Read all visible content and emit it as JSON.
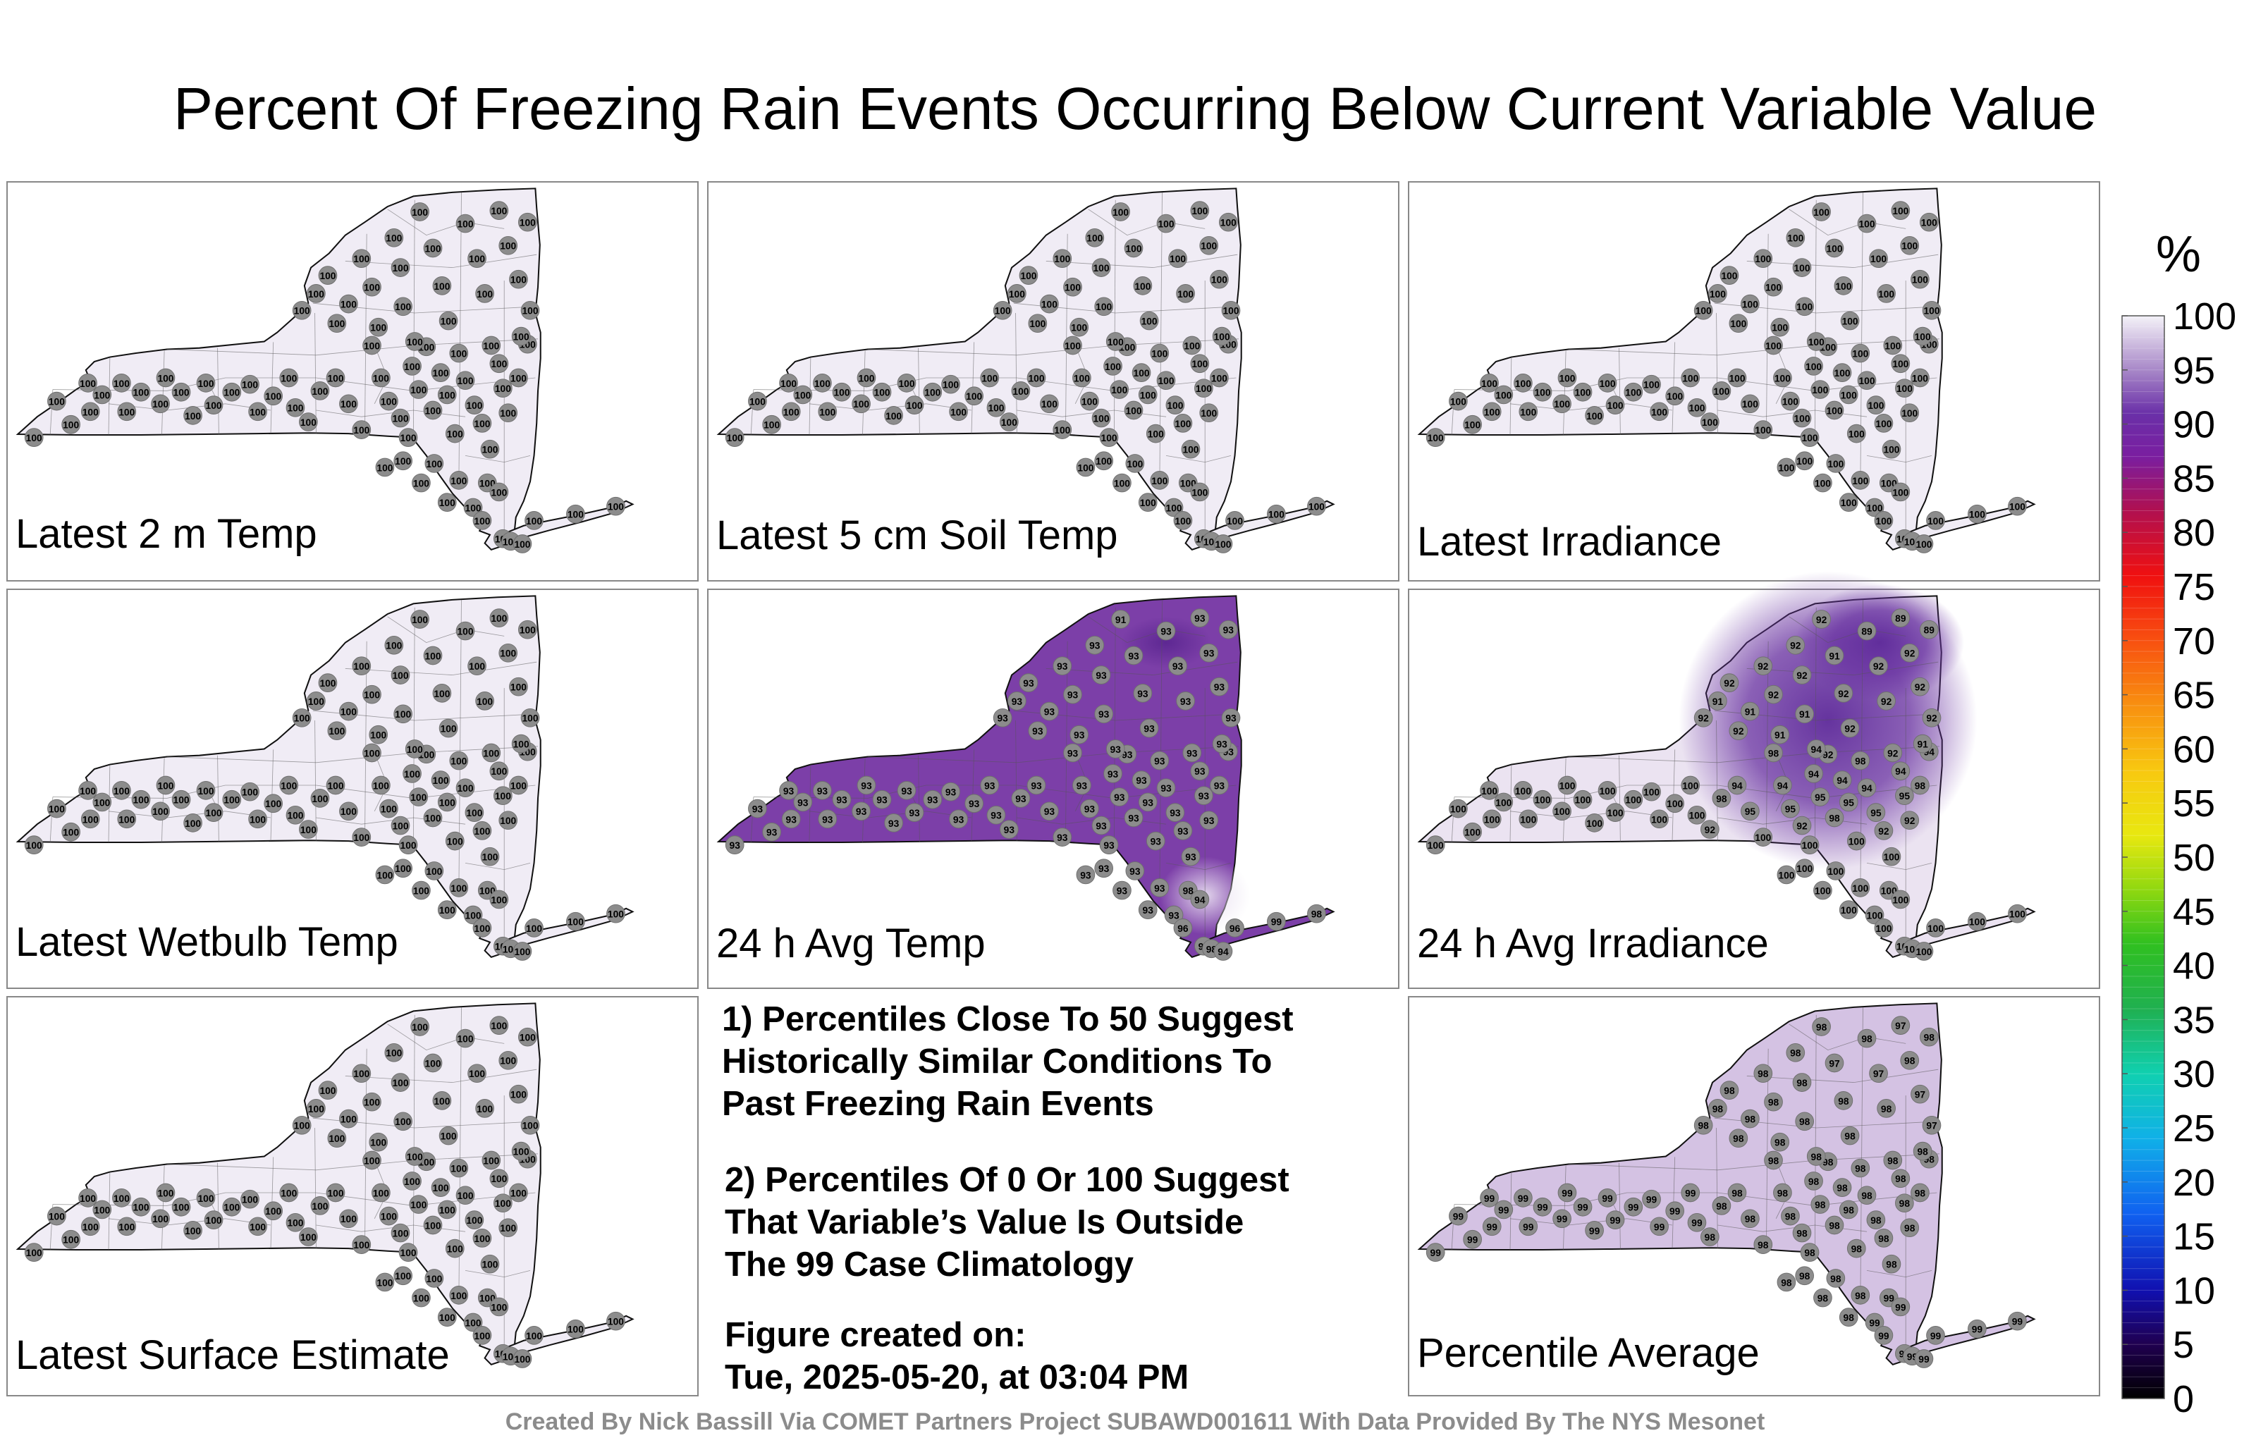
{
  "title": "Percent Of Freezing Rain Events Occurring Below Current Variable Value",
  "panels": [
    {
      "label": "Latest 2 m Temp",
      "fill": "#f0ecf5",
      "mode": "uniform",
      "value": "100"
    },
    {
      "label": "Latest 5 cm Soil Temp",
      "fill": "#f0ecf5",
      "mode": "uniform",
      "value": "100"
    },
    {
      "label": "Latest Irradiance",
      "fill": "#f0ecf5",
      "mode": "uniform",
      "value": "100"
    },
    {
      "label": "Latest Wetbulb Temp",
      "fill": "#f0ecf5",
      "mode": "uniform",
      "value": "100"
    },
    {
      "label": "24 h Avg Temp",
      "fill": "#7c3fa8",
      "mode": "avgtemp",
      "value": "93"
    },
    {
      "label": "24 h Avg Irradiance",
      "fill": "#ebe3f1",
      "mode": "avgirr",
      "value": "100"
    },
    {
      "label": "Latest Surface Estimate",
      "fill": "#f0ecf5",
      "mode": "uniform",
      "value": "100"
    },
    {
      "label": "Percentile Average",
      "fill": "#d4c2e3",
      "mode": "avg",
      "value": "98"
    }
  ],
  "notes": {
    "note1": [
      "1) Percentiles Close To 50 Suggest",
      "Historically Similar Conditions To",
      "Past Freezing Rain Events"
    ],
    "note2": [
      "2) Percentiles Of 0 Or 100 Suggest",
      "That Variable’s Value Is Outside",
      "The 99 Case Climatology"
    ],
    "created": [
      "Figure created on:",
      "Tue, 2025-05-20, at 03:04 PM"
    ]
  },
  "credit": "Created By Nick Bassill Via COMET Partners Project SUBAWD001611 With Data Provided By The NYS Mesonet",
  "colorbar": {
    "unit": "%",
    "ticks": [
      "100",
      "95",
      "90",
      "85",
      "80",
      "75",
      "70",
      "65",
      "60",
      "55",
      "50",
      "45",
      "40",
      "35",
      "30",
      "25",
      "20",
      "15",
      "10",
      "5",
      "0"
    ]
  }
}
